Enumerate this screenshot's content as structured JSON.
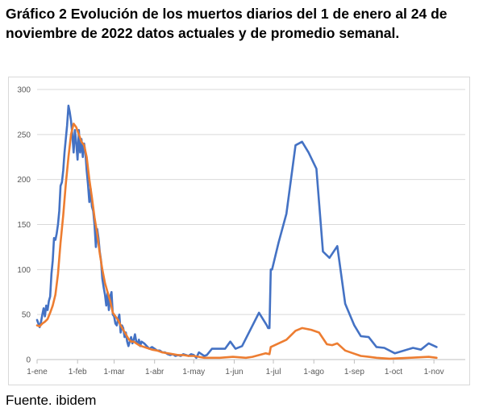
{
  "title": "Gráfico 2 Evolución de los muertos diarios del 1 de enero al 24 de noviembre de 2022 datos actuales y de promedio semanal.",
  "source": "Fuente. ibidem",
  "chart_data": {
    "type": "line",
    "title": "",
    "xlabel": "",
    "ylabel": "",
    "ylim": [
      0,
      300
    ],
    "xlim_days": [
      0,
      328
    ],
    "y_ticks": [
      0,
      50,
      100,
      150,
      200,
      250,
      300
    ],
    "x_ticks": [
      {
        "label": "1-ene",
        "day": 0
      },
      {
        "label": "1-feb",
        "day": 31
      },
      {
        "label": "1-mar",
        "day": 59
      },
      {
        "label": "1-abr",
        "day": 90
      },
      {
        "label": "1-may",
        "day": 120
      },
      {
        "label": "1-jun",
        "day": 151
      },
      {
        "label": "1-jul",
        "day": 181
      },
      {
        "label": "1-ago",
        "day": 212
      },
      {
        "label": "1-sep",
        "day": 243
      },
      {
        "label": "1-oct",
        "day": 273
      },
      {
        "label": "1-nov",
        "day": 304
      }
    ],
    "grid": true,
    "legend": "none",
    "series": [
      {
        "color": "#4472c4",
        "points": [
          [
            0,
            44
          ],
          [
            1,
            40
          ],
          [
            2,
            36
          ],
          [
            3,
            42
          ],
          [
            4,
            50
          ],
          [
            5,
            57
          ],
          [
            6,
            48
          ],
          [
            7,
            60
          ],
          [
            8,
            55
          ],
          [
            9,
            65
          ],
          [
            10,
            70
          ],
          [
            11,
            95
          ],
          [
            12,
            110
          ],
          [
            13,
            135
          ],
          [
            14,
            133
          ],
          [
            15,
            140
          ],
          [
            16,
            150
          ],
          [
            17,
            165
          ],
          [
            18,
            193
          ],
          [
            19,
            197
          ],
          [
            20,
            210
          ],
          [
            21,
            230
          ],
          [
            22,
            245
          ],
          [
            23,
            260
          ],
          [
            24,
            282
          ],
          [
            25,
            275
          ],
          [
            26,
            265
          ],
          [
            27,
            250
          ],
          [
            28,
            230
          ],
          [
            29,
            255
          ],
          [
            30,
            240
          ],
          [
            31,
            222
          ],
          [
            32,
            255
          ],
          [
            33,
            230
          ],
          [
            34,
            245
          ],
          [
            35,
            225
          ],
          [
            36,
            240
          ],
          [
            37,
            230
          ],
          [
            38,
            210
          ],
          [
            39,
            195
          ],
          [
            40,
            175
          ],
          [
            41,
            190
          ],
          [
            42,
            170
          ],
          [
            43,
            165
          ],
          [
            44,
            150
          ],
          [
            45,
            125
          ],
          [
            46,
            145
          ],
          [
            47,
            135
          ],
          [
            48,
            120
          ],
          [
            49,
            110
          ],
          [
            50,
            90
          ],
          [
            51,
            80
          ],
          [
            52,
            72
          ],
          [
            53,
            60
          ],
          [
            54,
            75
          ],
          [
            55,
            55
          ],
          [
            56,
            70
          ],
          [
            57,
            75
          ],
          [
            58,
            50
          ],
          [
            59,
            48
          ],
          [
            60,
            40
          ],
          [
            61,
            38
          ],
          [
            62,
            45
          ],
          [
            63,
            50
          ],
          [
            64,
            30
          ],
          [
            65,
            38
          ],
          [
            66,
            35
          ],
          [
            67,
            25
          ],
          [
            68,
            30
          ],
          [
            69,
            20
          ],
          [
            70,
            15
          ],
          [
            71,
            20
          ],
          [
            72,
            25
          ],
          [
            73,
            18
          ],
          [
            74,
            22
          ],
          [
            75,
            28
          ],
          [
            76,
            20
          ],
          [
            77,
            18
          ],
          [
            78,
            22
          ],
          [
            79,
            15
          ],
          [
            80,
            20
          ],
          [
            82,
            18
          ],
          [
            84,
            15
          ],
          [
            86,
            12
          ],
          [
            88,
            14
          ],
          [
            90,
            12
          ],
          [
            92,
            10
          ],
          [
            94,
            10
          ],
          [
            96,
            8
          ],
          [
            98,
            8
          ],
          [
            100,
            6
          ],
          [
            102,
            5
          ],
          [
            104,
            6
          ],
          [
            106,
            4
          ],
          [
            108,
            5
          ],
          [
            110,
            4
          ],
          [
            112,
            6
          ],
          [
            114,
            5
          ],
          [
            116,
            4
          ],
          [
            118,
            6
          ],
          [
            120,
            5
          ],
          [
            122,
            2
          ],
          [
            124,
            8
          ],
          [
            126,
            6
          ],
          [
            128,
            4
          ],
          [
            130,
            5
          ],
          [
            134,
            12
          ],
          [
            137,
            12
          ],
          [
            140,
            12
          ],
          [
            144,
            12
          ],
          [
            148,
            20
          ],
          [
            152,
            12
          ],
          [
            157,
            15
          ],
          [
            170,
            52
          ],
          [
            176,
            38
          ],
          [
            177,
            35
          ],
          [
            178,
            35
          ],
          [
            179,
            100
          ],
          [
            180,
            100
          ],
          [
            185,
            130
          ],
          [
            191,
            162
          ],
          [
            198,
            238
          ],
          [
            203,
            242
          ],
          [
            208,
            230
          ],
          [
            214,
            212
          ],
          [
            219,
            120
          ],
          [
            224,
            113
          ],
          [
            230,
            126
          ],
          [
            236,
            62
          ],
          [
            243,
            38
          ],
          [
            248,
            26
          ],
          [
            254,
            25
          ],
          [
            260,
            14
          ],
          [
            266,
            13
          ],
          [
            274,
            7
          ],
          [
            288,
            13
          ],
          [
            294,
            11
          ],
          [
            300,
            18
          ],
          [
            306,
            14
          ]
        ]
      },
      {
        "color": "#ed7d31",
        "points": [
          [
            0,
            38
          ],
          [
            2,
            37
          ],
          [
            4,
            40
          ],
          [
            6,
            42
          ],
          [
            8,
            45
          ],
          [
            10,
            52
          ],
          [
            12,
            60
          ],
          [
            14,
            72
          ],
          [
            16,
            95
          ],
          [
            18,
            130
          ],
          [
            20,
            160
          ],
          [
            22,
            195
          ],
          [
            24,
            225
          ],
          [
            26,
            250
          ],
          [
            28,
            262
          ],
          [
            30,
            258
          ],
          [
            32,
            250
          ],
          [
            34,
            242
          ],
          [
            36,
            238
          ],
          [
            38,
            225
          ],
          [
            40,
            200
          ],
          [
            42,
            180
          ],
          [
            44,
            158
          ],
          [
            46,
            140
          ],
          [
            48,
            118
          ],
          [
            50,
            100
          ],
          [
            52,
            85
          ],
          [
            54,
            75
          ],
          [
            56,
            65
          ],
          [
            58,
            52
          ],
          [
            60,
            48
          ],
          [
            62,
            44
          ],
          [
            64,
            38
          ],
          [
            66,
            33
          ],
          [
            68,
            28
          ],
          [
            70,
            23
          ],
          [
            72,
            20
          ],
          [
            74,
            20
          ],
          [
            76,
            18
          ],
          [
            78,
            16
          ],
          [
            80,
            15
          ],
          [
            84,
            13
          ],
          [
            88,
            11
          ],
          [
            92,
            10
          ],
          [
            96,
            8
          ],
          [
            100,
            7
          ],
          [
            104,
            6
          ],
          [
            108,
            5
          ],
          [
            112,
            5
          ],
          [
            116,
            4
          ],
          [
            120,
            4
          ],
          [
            124,
            3
          ],
          [
            128,
            2
          ],
          [
            136,
            2
          ],
          [
            140,
            2
          ],
          [
            150,
            3
          ],
          [
            160,
            2
          ],
          [
            165,
            3
          ],
          [
            175,
            7
          ],
          [
            178,
            6
          ],
          [
            179,
            14
          ],
          [
            185,
            18
          ],
          [
            191,
            22
          ],
          [
            198,
            32
          ],
          [
            203,
            35
          ],
          [
            210,
            33
          ],
          [
            216,
            30
          ],
          [
            222,
            17
          ],
          [
            226,
            16
          ],
          [
            230,
            18
          ],
          [
            236,
            10
          ],
          [
            242,
            7
          ],
          [
            248,
            4
          ],
          [
            254,
            3
          ],
          [
            260,
            2
          ],
          [
            270,
            1
          ],
          [
            285,
            2
          ],
          [
            300,
            3
          ],
          [
            306,
            2
          ]
        ]
      }
    ]
  }
}
